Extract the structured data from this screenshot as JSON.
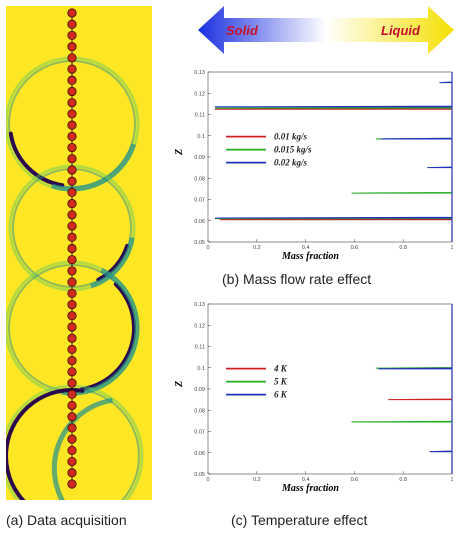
{
  "panel_a": {
    "caption": "(a) Data acquisition",
    "colors": {
      "background": "#fde725",
      "edge_dark": "#2a0a4d",
      "edge_mid": "#21908c",
      "edge_light": "#5ec962",
      "probe": "#d02b1e"
    },
    "probe_count": 43
  },
  "phase_arrow": {
    "left_label": "Solid",
    "right_label": "Liquid",
    "left_color": "#1a2fe0",
    "right_color": "#f5e000",
    "left_text_color": "#c8102e",
    "right_text_color": "#c8102e"
  },
  "chart_data": [
    {
      "type": "line",
      "caption": "(b) Mass flow rate effect",
      "xlabel": "Mass fraction",
      "ylabel": "Z",
      "xlim": [
        0,
        1
      ],
      "ylim": [
        0.05,
        0.13
      ],
      "xticks": [
        "0",
        "0.2",
        "0.4",
        "0.6",
        "0.8",
        "1"
      ],
      "yticks": [
        "0.05",
        "0.06",
        "0.07",
        "0.08",
        "0.09",
        "0.1",
        "0.11",
        "0.12",
        "0.13"
      ],
      "legend": [
        {
          "name": "0.01 kg/s",
          "color": "#cc2222"
        },
        {
          "name": "0.015 kg/s",
          "color": "#22aa22"
        },
        {
          "name": "0.02 kg/s",
          "color": "#2233bb"
        }
      ],
      "series": [
        {
          "name": "0.01 kg/s",
          "color": "#cc2222",
          "points": [
            [
              1,
              0.05
            ],
            [
              1,
              0.0605
            ],
            [
              0.05,
              0.0605
            ],
            [
              1,
              0.0608
            ],
            [
              1,
              0.1125
            ],
            [
              0.03,
              0.1125
            ],
            [
              1,
              0.1128
            ],
            [
              1,
              0.13
            ]
          ]
        },
        {
          "name": "0.015 kg/s",
          "color": "#22aa22",
          "points": [
            [
              1,
              0.05
            ],
            [
              1,
              0.061
            ],
            [
              0.03,
              0.061
            ],
            [
              1,
              0.0612
            ],
            [
              1,
              0.073
            ],
            [
              0.59,
              0.073
            ],
            [
              1,
              0.0733
            ],
            [
              1,
              0.0985
            ],
            [
              0.69,
              0.0985
            ],
            [
              1,
              0.0988
            ],
            [
              1,
              0.113
            ],
            [
              0.03,
              0.113
            ],
            [
              1,
              0.1133
            ],
            [
              1,
              0.13
            ]
          ]
        },
        {
          "name": "0.02 kg/s",
          "color": "#2233bb",
          "points": [
            [
              1,
              0.05
            ],
            [
              1,
              0.0613
            ],
            [
              0.03,
              0.0613
            ],
            [
              1,
              0.0616
            ],
            [
              1,
              0.085
            ],
            [
              0.9,
              0.085
            ],
            [
              1,
              0.0853
            ],
            [
              1,
              0.0985
            ],
            [
              0.71,
              0.0985
            ],
            [
              1,
              0.0988
            ],
            [
              1,
              0.1136
            ],
            [
              0.03,
              0.1136
            ],
            [
              1,
              0.1139
            ],
            [
              1,
              0.125
            ],
            [
              0.95,
              0.125
            ],
            [
              1,
              0.1253
            ],
            [
              1,
              0.13
            ]
          ]
        }
      ]
    },
    {
      "type": "line",
      "caption": "(c) Temperature effect",
      "xlabel": "Mass fraction",
      "ylabel": "Z",
      "xlim": [
        0,
        1
      ],
      "ylim": [
        0.05,
        0.13
      ],
      "xticks": [
        "0",
        "0.2",
        "0.4",
        "0.6",
        "0.8",
        "1"
      ],
      "yticks": [
        "0.05",
        "0.06",
        "0.07",
        "0.08",
        "0.09",
        "0.1",
        "0.11",
        "0.12",
        "0.13"
      ],
      "legend": [
        {
          "name": "4 K",
          "color": "#cc2222"
        },
        {
          "name": "5 K",
          "color": "#22aa22"
        },
        {
          "name": "6 K",
          "color": "#2233bb"
        }
      ],
      "series": [
        {
          "name": "4 K",
          "color": "#cc2222",
          "points": [
            [
              1,
              0.05
            ],
            [
              1,
              0.085
            ],
            [
              0.74,
              0.085
            ],
            [
              1,
              0.0853
            ],
            [
              1,
              0.13
            ]
          ]
        },
        {
          "name": "5 K",
          "color": "#22aa22",
          "points": [
            [
              1,
              0.05
            ],
            [
              1,
              0.0745
            ],
            [
              0.59,
              0.0745
            ],
            [
              1,
              0.0748
            ],
            [
              1,
              0.0998
            ],
            [
              0.69,
              0.0998
            ],
            [
              1,
              0.1001
            ],
            [
              1,
              0.13
            ]
          ]
        },
        {
          "name": "6 K",
          "color": "#2233bb",
          "points": [
            [
              1,
              0.05
            ],
            [
              1,
              0.0605
            ],
            [
              0.91,
              0.0605
            ],
            [
              1,
              0.0608
            ],
            [
              1,
              0.0995
            ],
            [
              0.7,
              0.0995
            ],
            [
              1,
              0.0998
            ],
            [
              1,
              0.13
            ]
          ]
        }
      ]
    }
  ]
}
